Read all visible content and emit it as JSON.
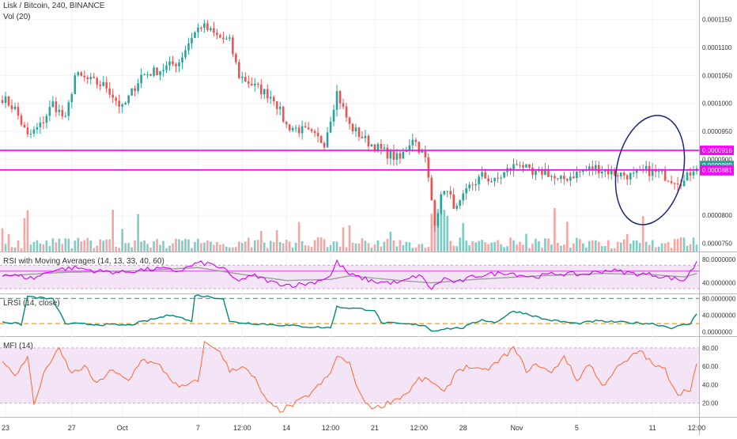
{
  "header": {
    "symbol_line": "Lisk / Bitcoin, 240, BINANCE",
    "volume_label": "Vol (20)"
  },
  "colors": {
    "up": "#26a69a",
    "down": "#ef5350",
    "up_vol": "#80cbc4",
    "down_vol": "#f4a6a4",
    "magenta": "#ff00ff",
    "rsi_line": "#d500f9",
    "rsi_ma": "#9e9e9e",
    "lrsi": "#00897b",
    "lrsi_guide_top": "#26a69a",
    "lrsi_guide_bottom": "#ff9800",
    "mfi": "#ff7043",
    "mfi_band": "#f3e5f5",
    "annotation": "#1a237e"
  },
  "price_axis": {
    "ticks": [
      "0.0001150",
      "0.0001100",
      "0.0001050",
      "0.0001000",
      "0.0000950",
      "0.0000900",
      "0.0000800",
      "0.0000750"
    ],
    "tick_values": [
      0.000115,
      0.00011,
      0.000105,
      0.0001,
      9.5e-05,
      9e-05,
      8e-05,
      7.5e-05
    ],
    "markers": [
      {
        "label": "0.0000916",
        "value": 9.16e-05,
        "color": "#ff00ff",
        "kind": "hline"
      },
      {
        "label": "0.0000889",
        "value": 8.89e-05,
        "color": "#26a69a",
        "kind": "last"
      },
      {
        "label": "02:08:06",
        "value": 8.79e-05,
        "color": "#26a69a",
        "kind": "countdown"
      },
      {
        "label": "0.0000881",
        "value": 8.81e-05,
        "color": "#ff00ff",
        "kind": "hline"
      }
    ]
  },
  "horizontal_lines": [
    9.16e-05,
    8.81e-05
  ],
  "time_axis": {
    "ticks": [
      {
        "label": "23",
        "index": 1
      },
      {
        "label": "27",
        "index": 22
      },
      {
        "label": "Oct",
        "index": 38
      },
      {
        "label": "7",
        "index": 62
      },
      {
        "label": "12:00",
        "index": 76
      },
      {
        "label": "14",
        "index": 90
      },
      {
        "label": "12:00",
        "index": 104
      },
      {
        "label": "21",
        "index": 118
      },
      {
        "label": "12:00",
        "index": 132
      },
      {
        "label": "28",
        "index": 146
      },
      {
        "label": "Nov",
        "index": 163
      },
      {
        "label": "5",
        "index": 182
      },
      {
        "label": "11",
        "index": 206
      },
      {
        "label": "12:00",
        "index": 220
      }
    ]
  },
  "rsi_panel": {
    "label": "RSI with Moving Averages (14, 13, 33, 40, 60)",
    "ticks": [
      "80.0000000",
      "40.0000000"
    ],
    "tick_values": [
      80,
      40
    ],
    "band_lines": [
      70,
      60,
      30
    ]
  },
  "lrsi_panel": {
    "label": "LRSI (14, close)",
    "ticks": [
      "80.0000000",
      "40.0000000",
      "0.0000000"
    ],
    "tick_values": [
      80,
      40,
      0
    ],
    "guides": [
      80,
      20
    ]
  },
  "mfi_panel": {
    "label": "MFI (14)",
    "ticks": [
      "80.00",
      "60.00",
      "40.00",
      "20.00"
    ],
    "tick_values": [
      80,
      60,
      40,
      20
    ],
    "band": [
      20,
      80
    ]
  },
  "chart_data": {
    "type": "candlestick",
    "x_labels": [
      "23",
      "27",
      "Oct",
      "7",
      "12:00",
      "14",
      "12:00",
      "21",
      "12:00",
      "28",
      "Nov",
      "5",
      "11",
      "12:00"
    ],
    "price_key_points": [
      [
        0,
        0.000101
      ],
      [
        4,
        9.9e-05
      ],
      [
        8,
        9.4e-05
      ],
      [
        12,
        9.6e-05
      ],
      [
        16,
        0.0001
      ],
      [
        20,
        9.7e-05
      ],
      [
        23,
        0.000105
      ],
      [
        28,
        0.000104
      ],
      [
        33,
        0.000103
      ],
      [
        38,
        9.9e-05
      ],
      [
        44,
        0.000105
      ],
      [
        50,
        0.000106
      ],
      [
        56,
        0.0001075
      ],
      [
        60,
        0.000112
      ],
      [
        63,
        0.000114
      ],
      [
        68,
        0.000112
      ],
      [
        72,
        0.000111
      ],
      [
        75,
        0.000105
      ],
      [
        80,
        0.000103
      ],
      [
        86,
        0.000101
      ],
      [
        90,
        9.6e-05
      ],
      [
        96,
        9.5e-05
      ],
      [
        102,
        9.3e-05
      ],
      [
        106,
        0.000102
      ],
      [
        110,
        9.6e-05
      ],
      [
        116,
        9.3e-05
      ],
      [
        122,
        9.1e-05
      ],
      [
        126,
        9e-05
      ],
      [
        130,
        9.4e-05
      ],
      [
        134,
        9e-05
      ],
      [
        137,
        7.9e-05
      ],
      [
        140,
        8.5e-05
      ],
      [
        144,
        8.1e-05
      ],
      [
        148,
        8.5e-05
      ],
      [
        152,
        8.7e-05
      ],
      [
        156,
        8.6e-05
      ],
      [
        160,
        8.8e-05
      ],
      [
        164,
        8.95e-05
      ],
      [
        168,
        8.7e-05
      ],
      [
        172,
        8.8e-05
      ],
      [
        176,
        8.6e-05
      ],
      [
        180,
        8.7e-05
      ],
      [
        184,
        8.8e-05
      ],
      [
        188,
        8.85e-05
      ],
      [
        194,
        8.75e-05
      ],
      [
        200,
        8.7e-05
      ],
      [
        204,
        8.8e-05
      ],
      [
        208,
        8.75e-05
      ],
      [
        212,
        8.65e-05
      ],
      [
        216,
        8.6e-05
      ],
      [
        219,
        8.85e-05
      ],
      [
        220,
        8.89e-05
      ]
    ],
    "series": [
      {
        "name": "RSI",
        "key_points": [
          [
            0,
            55
          ],
          [
            10,
            48
          ],
          [
            16,
            62
          ],
          [
            23,
            66
          ],
          [
            30,
            60
          ],
          [
            38,
            58
          ],
          [
            44,
            62
          ],
          [
            50,
            64
          ],
          [
            56,
            60
          ],
          [
            62,
            74
          ],
          [
            66,
            72
          ],
          [
            70,
            64
          ],
          [
            74,
            44
          ],
          [
            80,
            52
          ],
          [
            86,
            40
          ],
          [
            92,
            36
          ],
          [
            98,
            40
          ],
          [
            104,
            52
          ],
          [
            106,
            76
          ],
          [
            110,
            54
          ],
          [
            118,
            42
          ],
          [
            126,
            40
          ],
          [
            132,
            54
          ],
          [
            136,
            30
          ],
          [
            140,
            48
          ],
          [
            144,
            40
          ],
          [
            150,
            52
          ],
          [
            160,
            58
          ],
          [
            168,
            50
          ],
          [
            176,
            56
          ],
          [
            184,
            54
          ],
          [
            192,
            62
          ],
          [
            200,
            56
          ],
          [
            206,
            54
          ],
          [
            212,
            48
          ],
          [
            216,
            44
          ],
          [
            219,
            66
          ],
          [
            220,
            78
          ]
        ]
      },
      {
        "name": "RSI MA",
        "key_points": [
          [
            0,
            52
          ],
          [
            20,
            58
          ],
          [
            40,
            60
          ],
          [
            62,
            66
          ],
          [
            74,
            56
          ],
          [
            90,
            44
          ],
          [
            104,
            46
          ],
          [
            110,
            52
          ],
          [
            126,
            44
          ],
          [
            136,
            40
          ],
          [
            150,
            46
          ],
          [
            170,
            52
          ],
          [
            190,
            56
          ],
          [
            206,
            54
          ],
          [
            216,
            50
          ],
          [
            220,
            56
          ]
        ]
      },
      {
        "name": "LRSI",
        "key_points": [
          [
            0,
            25
          ],
          [
            6,
            18
          ],
          [
            8,
            85
          ],
          [
            16,
            78
          ],
          [
            20,
            20
          ],
          [
            40,
            16
          ],
          [
            54,
            42
          ],
          [
            60,
            24
          ],
          [
            61,
            88
          ],
          [
            70,
            80
          ],
          [
            72,
            24
          ],
          [
            98,
            12
          ],
          [
            104,
            10
          ],
          [
            106,
            60
          ],
          [
            118,
            52
          ],
          [
            120,
            22
          ],
          [
            134,
            16
          ],
          [
            136,
            2
          ],
          [
            140,
            8
          ],
          [
            146,
            10
          ],
          [
            152,
            30
          ],
          [
            156,
            22
          ],
          [
            162,
            50
          ],
          [
            166,
            44
          ],
          [
            172,
            30
          ],
          [
            182,
            20
          ],
          [
            188,
            26
          ],
          [
            200,
            22
          ],
          [
            206,
            20
          ],
          [
            212,
            10
          ],
          [
            218,
            20
          ],
          [
            220,
            44
          ]
        ]
      },
      {
        "name": "MFI",
        "key_points": [
          [
            0,
            68
          ],
          [
            4,
            48
          ],
          [
            8,
            72
          ],
          [
            10,
            18
          ],
          [
            14,
            60
          ],
          [
            18,
            78
          ],
          [
            22,
            52
          ],
          [
            26,
            60
          ],
          [
            30,
            40
          ],
          [
            34,
            56
          ],
          [
            40,
            44
          ],
          [
            44,
            68
          ],
          [
            50,
            60
          ],
          [
            56,
            36
          ],
          [
            62,
            44
          ],
          [
            64,
            85
          ],
          [
            68,
            80
          ],
          [
            72,
            56
          ],
          [
            76,
            60
          ],
          [
            80,
            46
          ],
          [
            84,
            20
          ],
          [
            88,
            12
          ],
          [
            92,
            18
          ],
          [
            96,
            26
          ],
          [
            100,
            38
          ],
          [
            104,
            52
          ],
          [
            106,
            72
          ],
          [
            110,
            62
          ],
          [
            114,
            24
          ],
          [
            118,
            14
          ],
          [
            122,
            20
          ],
          [
            128,
            30
          ],
          [
            132,
            46
          ],
          [
            136,
            44
          ],
          [
            140,
            30
          ],
          [
            144,
            56
          ],
          [
            148,
            60
          ],
          [
            152,
            54
          ],
          [
            156,
            62
          ],
          [
            162,
            80
          ],
          [
            166,
            56
          ],
          [
            170,
            62
          ],
          [
            174,
            52
          ],
          [
            178,
            72
          ],
          [
            182,
            44
          ],
          [
            186,
            64
          ],
          [
            190,
            38
          ],
          [
            194,
            56
          ],
          [
            198,
            66
          ],
          [
            202,
            78
          ],
          [
            206,
            62
          ],
          [
            210,
            56
          ],
          [
            214,
            30
          ],
          [
            218,
            36
          ],
          [
            220,
            62
          ]
        ]
      }
    ],
    "annotation": {
      "type": "ellipse",
      "note": "hand-drawn circle around latest price action"
    }
  }
}
